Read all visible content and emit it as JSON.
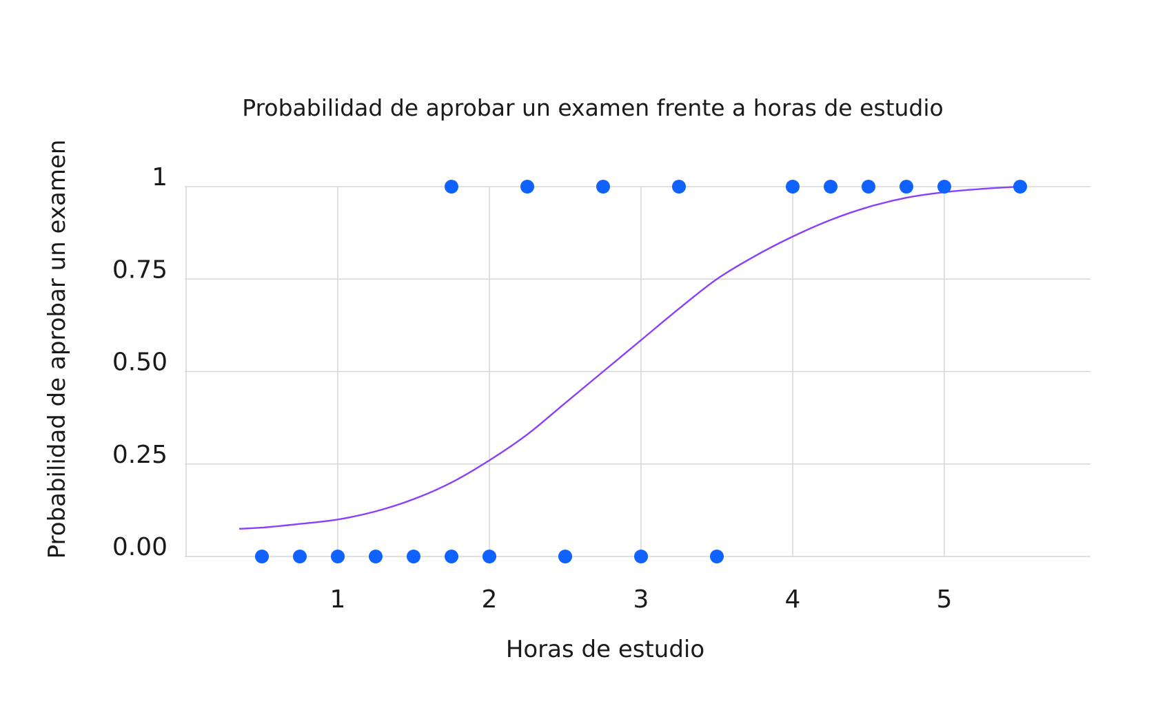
{
  "chart_data": {
    "type": "scatter",
    "title": "Probabilidad de aprobar un examen frente a horas de estudio",
    "xlabel": "Horas de estudio",
    "ylabel": "Probabilidad de aprobar un examen",
    "xlim": [
      0,
      6
    ],
    "ylim": [
      0,
      1
    ],
    "x_ticks": [
      1,
      2,
      3,
      4,
      5
    ],
    "x_tick_labels": [
      "1",
      "2",
      "3",
      "4",
      "5"
    ],
    "y_ticks": [
      0,
      0.25,
      0.5,
      0.75,
      1
    ],
    "y_tick_labels": [
      "0.00",
      "0.25",
      "0.50",
      "0.75",
      "1"
    ],
    "grid": true,
    "legend": "none",
    "point_color": "#0f62fe",
    "curve_color": "#8a3ffc",
    "series": [
      {
        "type": "scatter",
        "x": [
          0.5,
          0.75,
          1.0,
          1.25,
          1.5,
          1.75,
          1.75,
          2.0,
          2.25,
          2.5,
          2.75,
          3.0,
          3.25,
          3.5,
          4.0,
          4.25,
          4.5,
          4.75,
          5.0,
          5.5
        ],
        "y": [
          0,
          0,
          0,
          0,
          0,
          0,
          1,
          0,
          1,
          0,
          1,
          0,
          1,
          0,
          1,
          1,
          1,
          1,
          1,
          1
        ]
      },
      {
        "type": "line",
        "x": [
          0.35,
          0.5,
          0.75,
          1.0,
          1.25,
          1.5,
          1.75,
          2.0,
          2.25,
          2.5,
          2.75,
          3.0,
          3.25,
          3.5,
          3.75,
          4.0,
          4.25,
          4.5,
          4.75,
          5.0,
          5.25,
          5.5
        ],
        "y": [
          0.075,
          0.078,
          0.088,
          0.1,
          0.122,
          0.155,
          0.2,
          0.26,
          0.33,
          0.415,
          0.5,
          0.585,
          0.67,
          0.75,
          0.812,
          0.865,
          0.91,
          0.945,
          0.97,
          0.985,
          0.994,
          1.0
        ]
      }
    ]
  }
}
